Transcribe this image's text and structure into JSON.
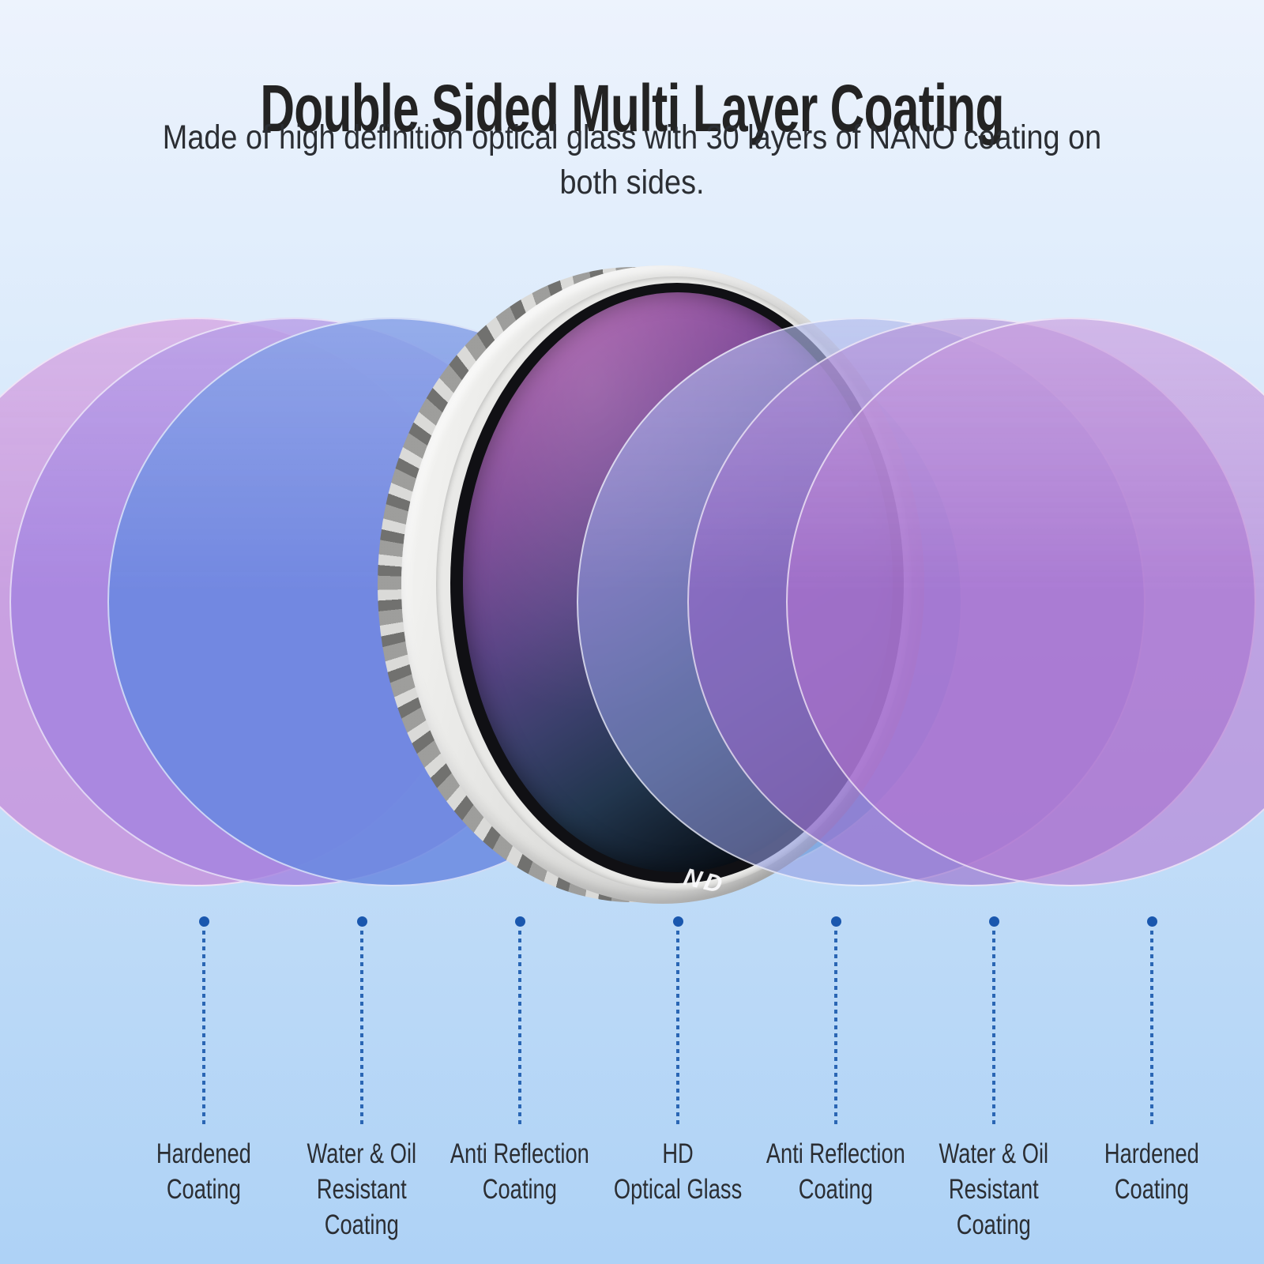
{
  "header": {
    "title": "Double Sided Multi Layer Coating",
    "subtitle_lines": [
      "Made of high definition optical glass with 30 layers of NANO coating on",
      "both sides."
    ]
  },
  "lens": {
    "marking": "ND"
  },
  "layers": [
    {
      "id": "hardened-coating-left",
      "lines": [
        "Hardened",
        "Coating"
      ]
    },
    {
      "id": "water-oil-resistant-coating-left",
      "lines": [
        "Water & Oil",
        "Resistant",
        "Coating"
      ]
    },
    {
      "id": "anti-reflection-coating-left",
      "lines": [
        "Anti Reflection",
        "Coating"
      ]
    },
    {
      "id": "hd-optical-glass",
      "lines": [
        "HD",
        "Optical Glass"
      ]
    },
    {
      "id": "anti-reflection-coating-right",
      "lines": [
        "Anti Reflection",
        "Coating"
      ]
    },
    {
      "id": "water-oil-resistant-coating-right",
      "lines": [
        "Water & Oil",
        "Resistant",
        "Coating"
      ]
    },
    {
      "id": "hardened-coating-right",
      "lines": [
        "Hardened",
        "Coating"
      ]
    }
  ],
  "colors": {
    "bg_top": "#edf3fd",
    "bg_bottom": "#aed2f6",
    "title_text": "#232323",
    "body_text": "#2b2e33",
    "dot": "#1a57ae",
    "leader_line": "#2a66b4",
    "disc_pink_left": "rgba(200,144,219,0.80)",
    "disc_lavender": "rgba(163,130,224,0.80)",
    "disc_blue": "rgba(104,136,224,0.85)",
    "disc_teal": "rgba(95,186,221,0.80)",
    "disc_periwinkle": "rgba(145,155,225,0.58)",
    "disc_purple": "rgba(150,100,200,0.58)",
    "disc_pink_right": "rgba(180,115,208,0.58)"
  }
}
